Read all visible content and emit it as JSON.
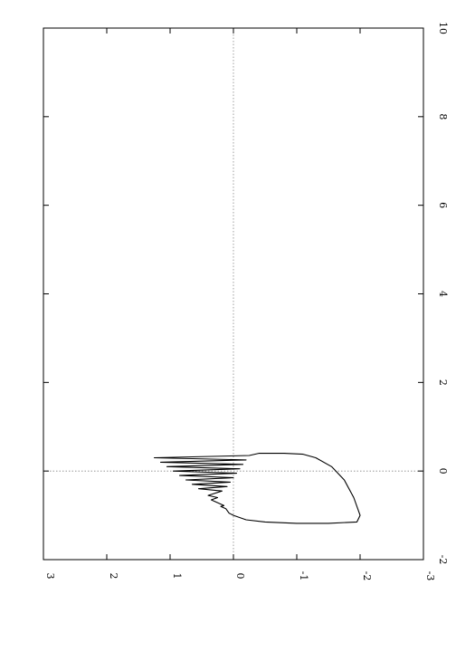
{
  "chart_data": {
    "type": "line",
    "orientation": "rotated-90-clockwise",
    "x_axis": {
      "range": [
        -2,
        10
      ],
      "ticks": [
        -2,
        0,
        2,
        4,
        6,
        8,
        10
      ],
      "tick_labels": [
        "-2",
        "0",
        "2",
        "4",
        "6",
        "8",
        "10"
      ],
      "label": ""
    },
    "y_axis": {
      "range": [
        -3,
        3
      ],
      "ticks": [
        -3,
        -2,
        -1,
        0,
        1,
        2,
        3
      ],
      "tick_labels": [
        "-3",
        "-2",
        "-1",
        "0",
        "1",
        "2",
        "3"
      ],
      "label": ""
    },
    "zero_lines": true,
    "grid": false,
    "series": [
      {
        "description": "phase trajectory: decaying oscillation spiralling outward into a relaxation limit cycle",
        "points": [
          [
            -1.0,
            0.0
          ],
          [
            -0.95,
            0.07
          ],
          [
            -0.85,
            0.12
          ],
          [
            -0.8,
            0.2
          ],
          [
            -0.78,
            0.15
          ],
          [
            -0.65,
            0.35
          ],
          [
            -0.6,
            0.25
          ],
          [
            -0.55,
            0.4
          ],
          [
            -0.45,
            0.18
          ],
          [
            -0.4,
            0.55
          ],
          [
            -0.35,
            0.1
          ],
          [
            -0.3,
            0.65
          ],
          [
            -0.25,
            0.05
          ],
          [
            -0.2,
            0.75
          ],
          [
            -0.15,
            0.0
          ],
          [
            -0.1,
            0.85
          ],
          [
            -0.05,
            -0.05
          ],
          [
            0.0,
            0.95
          ],
          [
            0.05,
            -0.1
          ],
          [
            0.1,
            1.05
          ],
          [
            0.15,
            -0.15
          ],
          [
            0.2,
            1.15
          ],
          [
            0.25,
            -0.2
          ],
          [
            0.3,
            1.25
          ],
          [
            0.35,
            -0.25
          ],
          [
            0.4,
            -0.4
          ],
          [
            0.4,
            -0.8
          ],
          [
            0.38,
            -1.1
          ],
          [
            0.3,
            -1.3
          ],
          [
            0.1,
            -1.55
          ],
          [
            -0.2,
            -1.75
          ],
          [
            -0.6,
            -1.9
          ],
          [
            -1.0,
            -2.0
          ],
          [
            -1.15,
            -1.95
          ],
          [
            -1.18,
            -1.5
          ],
          [
            -1.18,
            -1.0
          ],
          [
            -1.15,
            -0.5
          ],
          [
            -1.1,
            -0.2
          ],
          [
            -1.0,
            0.0
          ]
        ]
      }
    ]
  }
}
